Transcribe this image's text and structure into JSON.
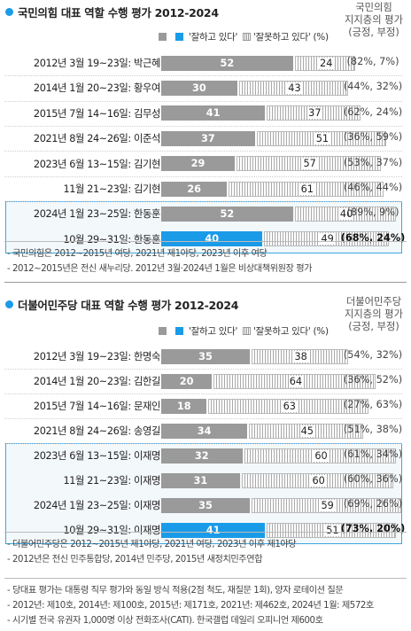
{
  "colors": {
    "good": "#9a9a9a",
    "highlight": "#1a9be8",
    "bad_hatch": "#a9a9a9",
    "box_border": "#3ba6de"
  },
  "chart_data": [
    {
      "type": "bar",
      "title": "국민의힘 대표 역할 수행 평가 2012-2024",
      "legend": {
        "good": "'잘하고 있다'",
        "bad": "'잘못하고 있다'",
        "unit": "(%)"
      },
      "support_header": [
        "국민의힘",
        "지지층의 평가",
        "(긍정, 부정)"
      ],
      "categories": [
        "2012년 3월 19~23일: 박근혜",
        "2014년 1월 20~23일: 황우여",
        "2015년 7월 14~16일: 김무성",
        "2021년 8월 24~26일: 이준석",
        "2023년 6월 13~15일: 김기현",
        "11월 21~23일: 김기현",
        "2024년 1월 23~25일: 한동훈",
        "10월 29~31일: 한동훈"
      ],
      "series": [
        {
          "name": "'잘하고 있다'",
          "values": [
            52,
            30,
            41,
            37,
            29,
            26,
            52,
            40
          ]
        },
        {
          "name": "'잘못하고 있다'",
          "values": [
            24,
            43,
            37,
            51,
            57,
            61,
            40,
            49
          ]
        }
      ],
      "supporters": [
        "(82%, 7%)",
        "(44%, 32%)",
        "(62%, 24%)",
        "(36%, 59%)",
        "(53%, 37%)",
        "(46%, 44%)",
        "(89%, 9%)",
        "(68%, 24%)"
      ],
      "highlight_rows": [
        6,
        7
      ],
      "highlight_blue": [
        7
      ],
      "notes": [
        "- 국민의힘은 2012~2015년 여당, 2021년 제1야당, 2023년 이후 여당",
        "- 2012~2015년은 전신 새누리당. 2012년 3월·2024년 1월은 비상대책위원장 평가"
      ]
    },
    {
      "type": "bar",
      "title": "더불어민주당 대표 역할 수행 평가 2012-2024",
      "legend": {
        "good": "'잘하고 있다'",
        "bad": "'잘못하고 있다'",
        "unit": "(%)"
      },
      "support_header": [
        "더불어민주당",
        "지지층의 평가",
        "(긍정, 부정)"
      ],
      "categories": [
        "2012년 3월 19~23일: 한명숙",
        "2014년 1월 20~23일: 김한길",
        "2015년 7월 14~16일: 문재인",
        "2021년 8월 24~26일: 송영길",
        "2023년 6월 13~15일: 이재명",
        "11월 21~23일: 이재명",
        "2024년 1월 23~25일: 이재명",
        "10월 29~31일: 이재명"
      ],
      "series": [
        {
          "name": "'잘하고 있다'",
          "values": [
            35,
            20,
            18,
            34,
            32,
            31,
            35,
            41
          ]
        },
        {
          "name": "'잘못하고 있다'",
          "values": [
            38,
            64,
            63,
            45,
            60,
            60,
            59,
            51
          ]
        }
      ],
      "supporters": [
        "(54%, 32%)",
        "(36%, 52%)",
        "(27%, 63%)",
        "(51%, 38%)",
        "(61%, 34%)",
        "(60%, 36%)",
        "(69%, 26%)",
        "(73%, 20%)"
      ],
      "highlight_rows": [
        4,
        5,
        6,
        7
      ],
      "highlight_blue": [
        7
      ],
      "notes": [
        "- 더불어민주당은 2012~2015년 제1야당, 2021년 여당, 2023년 이후 제1야당",
        "- 2012년은 전신 민주통합당, 2014년 민주당, 2015년 새정치민주연합"
      ]
    }
  ],
  "footer": [
    "- 당대표 평가는 대통령 직무 평가와 동일 방식 적용(2점 척도, 재질문 1회), 양자 로테이션 질문",
    "- 2012년: 제10호, 2014년: 제100호, 2015년: 제171호, 2021년: 제462호, 2024년 1월: 제572호",
    "- 시기별 전국 유권자 1,000명 이상 전화조사(CATI). 한국갤럽 데일리 오피니언 제600호"
  ]
}
